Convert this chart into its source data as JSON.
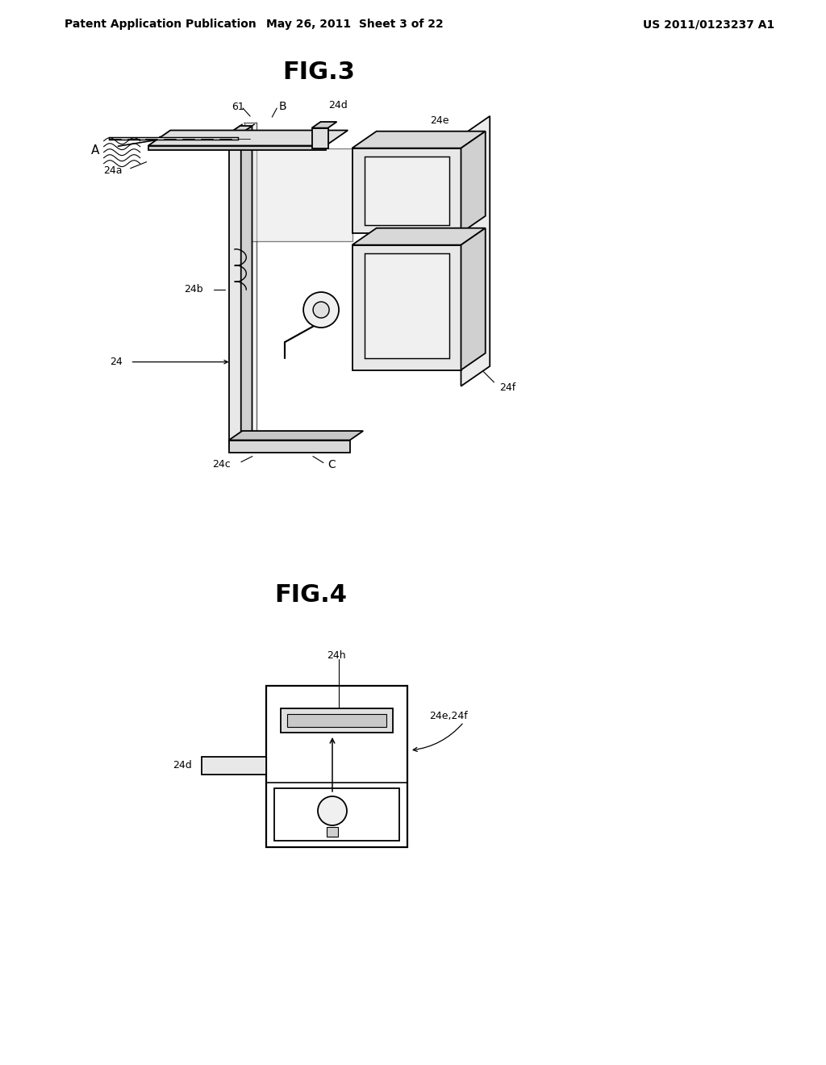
{
  "background_color": "#ffffff",
  "page_width": 10.24,
  "page_height": 13.2,
  "header_left": "Patent Application Publication",
  "header_center": "May 26, 2011  Sheet 3 of 22",
  "header_right": "US 2011/0123237 A1",
  "fig3_title": "FIG.3",
  "fig4_title": "FIG.4",
  "line_color": "#000000",
  "lw": 1.3,
  "lw_thin": 0.8,
  "lw_thick": 1.8,
  "label_fs": 10,
  "title_fs": 22,
  "header_fs": 10
}
